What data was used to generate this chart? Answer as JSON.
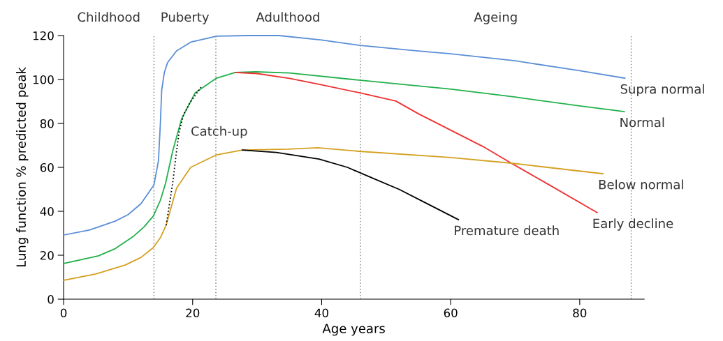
{
  "chart_data": {
    "type": "line",
    "xlabel": "Age years",
    "ylabel": "Lung function % predicted peak",
    "xlim": [
      0,
      90
    ],
    "ylim": [
      0,
      120
    ],
    "xticks": [
      0,
      20,
      40,
      60,
      80
    ],
    "yticks": [
      0,
      20,
      40,
      60,
      80,
      100,
      120
    ],
    "grid": false,
    "legend": false,
    "marker": "none",
    "line_style": "solid",
    "series": [
      {
        "name": "Supra normal",
        "color": "#5b8fd6",
        "x": [
          0,
          4,
          8,
          10,
          12,
          14,
          14.7,
          15,
          15.2,
          15.6,
          16.1,
          17.5,
          19.7,
          23.7,
          28.3,
          33.4,
          40,
          46,
          55,
          60,
          70,
          80,
          87
        ],
        "values": [
          29.2,
          31.5,
          35.5,
          38.5,
          43.5,
          52,
          63,
          80,
          95,
          103,
          107.6,
          113,
          117,
          119.7,
          120,
          120,
          118,
          115.5,
          113,
          111.7,
          108.5,
          104,
          100.6
        ]
      },
      {
        "name": "Normal",
        "color": "#22b04b",
        "x": [
          0,
          5.4,
          8,
          10.7,
          12.5,
          13.9,
          15,
          15.8,
          16.9,
          18.3,
          20.4,
          23.7,
          26.6,
          29.8,
          35,
          45.8,
          60.1,
          70,
          80,
          86.9
        ],
        "values": [
          16.2,
          19.7,
          23,
          28.3,
          33,
          37.8,
          45,
          52.7,
          67.3,
          82.2,
          94,
          100.6,
          103.2,
          103.5,
          103,
          99.7,
          95.6,
          92,
          88,
          85.4
        ]
      },
      {
        "name": "Early decline",
        "color": "#f03030",
        "x": [
          26.6,
          30,
          35,
          39.6,
          45.8,
          51.5,
          55,
          60.1,
          65,
          69.4,
          75,
          82.7
        ],
        "values": [
          103.2,
          102.7,
          100.5,
          97.8,
          94,
          90.2,
          84.4,
          76.8,
          69.5,
          61.9,
          52.5,
          39.4
        ]
      },
      {
        "name": "Below normal",
        "color": "#d4a020",
        "x": [
          0,
          5,
          9.6,
          12,
          13.9,
          15,
          15.9,
          17.5,
          19.7,
          23.7,
          27.7,
          34.8,
          39.4,
          45.8,
          60,
          69.4,
          83.6
        ],
        "values": [
          8.6,
          11.5,
          15.6,
          19,
          23.5,
          28,
          33.7,
          50.5,
          60,
          65.7,
          67.9,
          68.3,
          68.9,
          67.3,
          64.5,
          61.9,
          57.1
        ]
      },
      {
        "name": "Premature death",
        "color": "#000000",
        "x": [
          27.7,
          33,
          39.6,
          44,
          47.5,
          52,
          56,
          61.2
        ],
        "values": [
          67.9,
          66.8,
          63.8,
          60,
          55.6,
          50,
          44,
          36.2
        ]
      },
      {
        "name": "Catch-up",
        "color": "#000000",
        "line_style": "dotted",
        "x": [
          15.9,
          16.9,
          17.5,
          17.9,
          18.6,
          19.6,
          21.3
        ],
        "values": [
          33.7,
          52.7,
          67.3,
          76,
          84,
          89.5,
          96.5
        ]
      }
    ],
    "ref_lines": [
      {
        "axis": "x",
        "value": 14,
        "color": "#999999",
        "line_style": "dotted"
      },
      {
        "axis": "x",
        "value": 23.6,
        "color": "#999999",
        "line_style": "dotted"
      },
      {
        "axis": "x",
        "value": 46,
        "color": "#999999",
        "line_style": "dotted"
      },
      {
        "axis": "x",
        "value": 88,
        "color": "#999999",
        "line_style": "dotted"
      }
    ],
    "annotations": [
      "Childhood",
      "Puberty",
      "Adulthood",
      "Ageing"
    ]
  }
}
